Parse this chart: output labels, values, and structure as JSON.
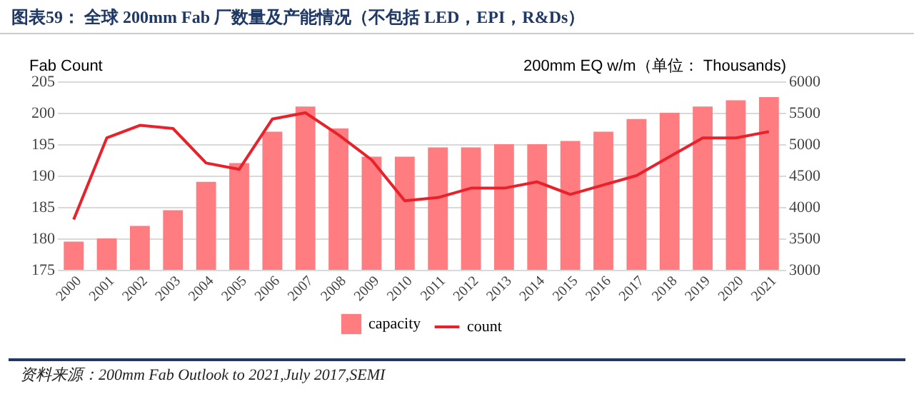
{
  "chart_data": {
    "type": "bar",
    "title": "图表59：  全球 200mm Fab 厂数量及产能情况（不包括 LED，EPI，R&Ds）",
    "categories": [
      "2000",
      "2001",
      "2002",
      "2003",
      "2004",
      "2005",
      "2006",
      "2007",
      "2008",
      "2009",
      "2010",
      "2011",
      "2012",
      "2013",
      "2014",
      "2015",
      "2016",
      "2017",
      "2018",
      "2019",
      "2020",
      "2021"
    ],
    "series": [
      {
        "name": "capacity",
        "axis": "y2",
        "color": "#ff7c80",
        "values": [
          3450,
          3500,
          3700,
          3950,
          4400,
          4700,
          5200,
          5600,
          5250,
          4800,
          4800,
          4950,
          4950,
          5000,
          5000,
          5050,
          5200,
          5400,
          5500,
          5600,
          5700,
          5750
        ]
      },
      {
        "name": "count",
        "type": "line",
        "color": "#e8212b",
        "values": [
          183,
          196,
          198,
          197.5,
          192,
          191,
          199,
          200,
          196.5,
          192.5,
          186,
          186.5,
          188,
          188,
          189,
          187,
          188.5,
          190,
          193,
          196,
          196,
          197
        ]
      }
    ],
    "ylabel": "Fab Count",
    "y2label": "200mm EQ w/m（单位： Thousands)",
    "ylim": [
      175,
      205
    ],
    "yticks": [
      175,
      180,
      185,
      190,
      195,
      200,
      205
    ],
    "y2lim": [
      3000,
      6000
    ],
    "y2ticks": [
      3000,
      3500,
      4000,
      4500,
      5000,
      5500,
      6000
    ],
    "grid": "y",
    "legend": "bottom",
    "annotations": [
      "资料来源：200mm Fab Outlook to 2021,July 2017,SEMI"
    ]
  }
}
